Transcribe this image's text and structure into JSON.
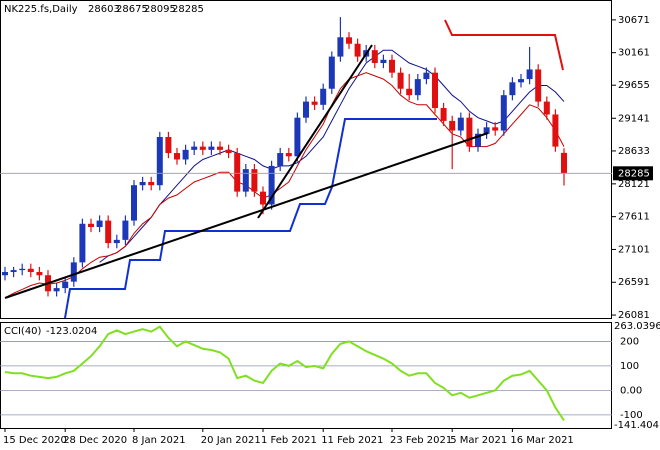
{
  "chart_data": [
    {
      "type": "candlestick",
      "title": "NK225.fs,Daily",
      "categories": [
        "15 Dec 2020",
        null,
        null,
        null,
        null,
        null,
        null,
        "28 Dec 2020",
        null,
        null,
        null,
        null,
        null,
        null,
        null,
        "8 Jan 2021",
        null,
        null,
        null,
        null,
        null,
        null,
        null,
        "20 Jan 2021",
        null,
        null,
        null,
        null,
        null,
        null,
        "1 Feb 2021",
        null,
        null,
        null,
        null,
        null,
        null,
        "11 Feb 2021",
        null,
        null,
        null,
        null,
        null,
        null,
        null,
        "23 Feb 2021",
        null,
        null,
        null,
        null,
        null,
        null,
        "5 Mar 2021",
        null,
        null,
        null,
        null,
        null,
        null,
        "16 Mar 2021",
        null,
        null,
        null,
        null,
        null,
        null
      ],
      "open": [
        26700,
        26750,
        26780,
        26800,
        26750,
        26700,
        26450,
        26500,
        26600,
        26900,
        27500,
        27450,
        27550,
        27200,
        27250,
        27550,
        28100,
        28150,
        28100,
        28850,
        28600,
        28500,
        28650,
        28700,
        28650,
        28700,
        28650,
        28600,
        28000,
        28350,
        28000,
        27800,
        28400,
        28600,
        28550,
        29150,
        29400,
        29350,
        29600,
        30100,
        30400,
        30300,
        30100,
        30200,
        30000,
        30050,
        29850,
        29600,
        29500,
        29750,
        29850,
        29300,
        29100,
        28950,
        29150,
        28700,
        28900,
        29000,
        28950,
        29500,
        29700,
        29750,
        29900,
        29400,
        29200,
        28603
      ],
      "high": [
        26830,
        26830,
        26880,
        26880,
        26830,
        26780,
        26580,
        26680,
        26980,
        27580,
        27580,
        27630,
        27630,
        27330,
        27630,
        28180,
        28230,
        28230,
        28930,
        28930,
        28680,
        28730,
        28780,
        28780,
        28780,
        28780,
        28730,
        28680,
        28430,
        28430,
        28080,
        28480,
        28680,
        28680,
        29230,
        29480,
        29480,
        29680,
        30180,
        30714,
        30480,
        30380,
        30280,
        30280,
        30130,
        30130,
        29930,
        29830,
        29830,
        29930,
        29930,
        29380,
        29180,
        29230,
        29230,
        28980,
        29080,
        29080,
        29580,
        29780,
        29830,
        30250,
        29980,
        29480,
        29280,
        28675
      ],
      "low": [
        26620,
        26670,
        26700,
        26670,
        26620,
        26370,
        26370,
        26420,
        26520,
        26820,
        27370,
        27370,
        27120,
        27120,
        27170,
        27470,
        28020,
        28020,
        28020,
        28520,
        28420,
        28420,
        28570,
        28570,
        28570,
        28570,
        28520,
        27920,
        27920,
        27920,
        27650,
        27720,
        28320,
        28470,
        28470,
        29070,
        29270,
        29270,
        29520,
        30020,
        30220,
        30020,
        30020,
        29920,
        29920,
        29770,
        29520,
        29420,
        29420,
        29670,
        29220,
        29020,
        28350,
        28870,
        28620,
        28620,
        28820,
        28870,
        28870,
        29420,
        29620,
        29670,
        29320,
        29120,
        28620,
        28095
      ],
      "close": [
        26750,
        26780,
        26800,
        26750,
        26700,
        26450,
        26500,
        26600,
        26900,
        27500,
        27450,
        27550,
        27200,
        27250,
        27550,
        28100,
        28150,
        28100,
        28850,
        28600,
        28500,
        28650,
        28700,
        28650,
        28700,
        28650,
        28600,
        28000,
        28350,
        28000,
        27800,
        28400,
        28600,
        28550,
        29150,
        29400,
        29350,
        29600,
        30100,
        30400,
        30300,
        30100,
        30200,
        30000,
        30050,
        29850,
        29600,
        29500,
        29750,
        29850,
        29300,
        29100,
        28950,
        29150,
        28700,
        28900,
        29000,
        28950,
        29500,
        29700,
        29750,
        29900,
        29400,
        29200,
        28700,
        28285
      ],
      "up_color": "#1c38b8",
      "down_color": "#e01010",
      "overlays": [
        {
          "color": "#10108c",
          "values": [
            null,
            null,
            null,
            null,
            null,
            null,
            null,
            null,
            null,
            null,
            null,
            26900,
            27000,
            27050,
            27150,
            27300,
            27450,
            27600,
            27800,
            27950,
            28100,
            28250,
            28400,
            28500,
            28550,
            28600,
            28650,
            28600,
            28550,
            28500,
            28400,
            28350,
            28400,
            28400,
            28450,
            28550,
            28700,
            28850,
            29100,
            29350,
            29600,
            29800,
            30000,
            30100,
            30200,
            30200,
            30100,
            30000,
            29950,
            29900,
            29800,
            29650,
            29500,
            29400,
            29250,
            29150,
            29100,
            29050,
            29100,
            29250,
            29400,
            29550,
            29650,
            29650,
            29550,
            29400
          ]
        },
        {
          "color": "#c80000",
          "values": [
            26350,
            26420,
            26480,
            26540,
            26580,
            26560,
            26580,
            26620,
            26680,
            26800,
            26900,
            26980,
            27000,
            27050,
            27150,
            27350,
            27500,
            27600,
            27800,
            27900,
            27950,
            28050,
            28150,
            28200,
            28250,
            28300,
            28300,
            28150,
            28100,
            28000,
            27900,
            27950,
            28050,
            28150,
            28400,
            28650,
            28850,
            29050,
            29350,
            29600,
            29750,
            29800,
            29850,
            29800,
            29750,
            29650,
            29500,
            29400,
            29350,
            29350,
            29200,
            29050,
            28900,
            28850,
            28700,
            28700,
            28700,
            28750,
            28900,
            29050,
            29200,
            29350,
            29300,
            29150,
            28950,
            28700
          ]
        }
      ],
      "ylim": [
        26035,
        30980
      ],
      "yticks": [
        26081,
        26591,
        27101,
        27611,
        28121,
        28633,
        29141,
        29655,
        30161,
        30671
      ]
    },
    {
      "type": "line",
      "title": "CCI(40)",
      "color": "#80e020",
      "values": [
        75,
        70,
        70,
        60,
        55,
        50,
        55,
        70,
        80,
        110,
        140,
        180,
        230,
        245,
        230,
        240,
        250,
        240,
        260,
        215,
        180,
        200,
        185,
        170,
        165,
        155,
        130,
        50,
        60,
        40,
        30,
        80,
        110,
        100,
        120,
        95,
        100,
        90,
        150,
        190,
        200,
        180,
        160,
        145,
        130,
        110,
        80,
        60,
        70,
        70,
        30,
        10,
        -20,
        -10,
        -30,
        -20,
        -10,
        0,
        40,
        60,
        65,
        80,
        40,
        0,
        -70,
        -123.0204
      ],
      "ylim": [
        -141.404,
        263.0396
      ],
      "yticks": [
        200,
        100,
        {
          "value": 0,
          "label": "0.00"
        },
        -100
      ]
    }
  ]
}
